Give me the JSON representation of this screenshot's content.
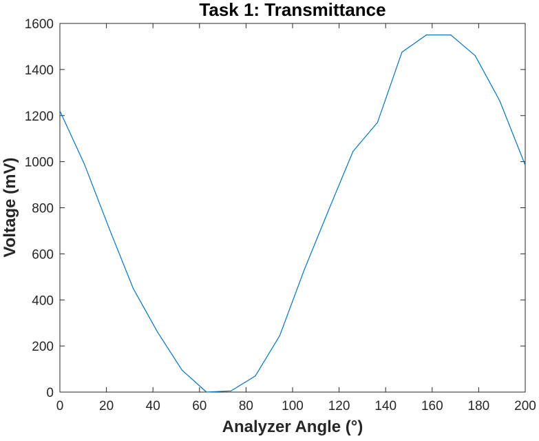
{
  "chart_data": {
    "type": "line",
    "title": "Task 1: Transmittance",
    "xlabel": "Analyzer Angle (°)",
    "ylabel": "Voltage (mV)",
    "xlim": [
      0,
      200
    ],
    "ylim": [
      0,
      1600
    ],
    "xticks": [
      0,
      20,
      40,
      60,
      80,
      100,
      120,
      140,
      160,
      180,
      200
    ],
    "yticks": [
      0,
      200,
      400,
      600,
      800,
      1000,
      1200,
      1400,
      1600
    ],
    "grid": false,
    "series": [
      {
        "color": "#0072BD",
        "x": [
          0,
          10.5,
          21,
          31.5,
          42,
          52.5,
          63,
          73.5,
          84,
          94.5,
          105,
          115.5,
          126,
          136.5,
          147,
          157.5,
          168,
          178.5,
          189,
          200
        ],
        "y": [
          1220,
          990,
          715,
          450,
          260,
          95,
          0,
          5,
          70,
          245,
          530,
          790,
          1045,
          1170,
          1475,
          1550,
          1550,
          1460,
          1265,
          985
        ]
      }
    ]
  }
}
